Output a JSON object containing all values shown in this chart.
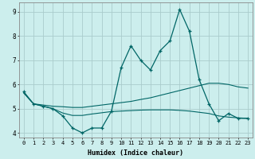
{
  "title": "",
  "xlabel": "Humidex (Indice chaleur)",
  "bg_color": "#cceeed",
  "grid_color": "#aacccc",
  "line_color": "#006666",
  "xlim": [
    -0.5,
    23.5
  ],
  "ylim": [
    3.8,
    9.4
  ],
  "yticks": [
    4,
    5,
    6,
    7,
    8,
    9
  ],
  "xticks": [
    0,
    1,
    2,
    3,
    4,
    5,
    6,
    7,
    8,
    9,
    10,
    11,
    12,
    13,
    14,
    15,
    16,
    17,
    18,
    19,
    20,
    21,
    22,
    23
  ],
  "line1_x": [
    0,
    1,
    2,
    3,
    4,
    5,
    6,
    7,
    8,
    9,
    10,
    11,
    12,
    13,
    14,
    15,
    16,
    17,
    18,
    19,
    20,
    21,
    22,
    23
  ],
  "line1_y": [
    5.7,
    5.2,
    5.1,
    5.0,
    4.7,
    4.2,
    4.0,
    4.2,
    4.2,
    4.9,
    6.7,
    7.6,
    7.0,
    6.6,
    7.4,
    7.8,
    9.1,
    8.2,
    6.2,
    5.2,
    4.5,
    4.8,
    4.6,
    4.6
  ],
  "line2_x": [
    0,
    1,
    2,
    3,
    4,
    5,
    6,
    7,
    8,
    9,
    10,
    11,
    12,
    13,
    14,
    15,
    16,
    17,
    18,
    19,
    20,
    21,
    22,
    23
  ],
  "line2_y": [
    5.65,
    5.2,
    5.15,
    5.1,
    5.08,
    5.05,
    5.05,
    5.1,
    5.15,
    5.2,
    5.25,
    5.3,
    5.38,
    5.45,
    5.55,
    5.65,
    5.75,
    5.85,
    5.95,
    6.05,
    6.05,
    6.0,
    5.9,
    5.85
  ],
  "line3_x": [
    0,
    1,
    2,
    3,
    4,
    5,
    6,
    7,
    8,
    9,
    10,
    11,
    12,
    13,
    14,
    15,
    16,
    17,
    18,
    19,
    20,
    21,
    22,
    23
  ],
  "line3_y": [
    5.65,
    5.2,
    5.1,
    5.0,
    4.82,
    4.72,
    4.72,
    4.78,
    4.83,
    4.88,
    4.9,
    4.92,
    4.94,
    4.95,
    4.95,
    4.95,
    4.93,
    4.9,
    4.85,
    4.8,
    4.7,
    4.65,
    4.62,
    4.6
  ]
}
